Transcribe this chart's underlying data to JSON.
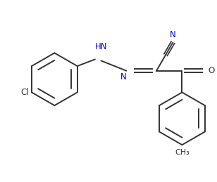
{
  "bg_color": "#ffffff",
  "line_color": "#333333",
  "label_color_N": "#0000cc",
  "label_color_black": "#333333",
  "line_width": 1.4,
  "figsize": [
    3.08,
    2.59
  ],
  "dpi": 100,
  "xlim": [
    -3.8,
    2.6
  ],
  "ylim": [
    -2.6,
    2.0
  ]
}
